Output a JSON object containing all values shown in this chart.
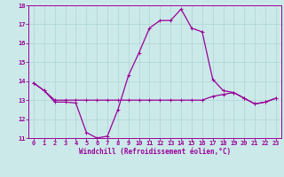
{
  "hours": [
    0,
    1,
    2,
    3,
    4,
    5,
    6,
    7,
    8,
    9,
    10,
    11,
    12,
    13,
    14,
    15,
    16,
    17,
    18,
    19,
    20,
    21,
    22,
    23
  ],
  "windchill": [
    13.9,
    13.5,
    12.9,
    12.9,
    12.85,
    11.3,
    11.0,
    11.1,
    12.5,
    14.3,
    15.5,
    16.8,
    17.2,
    17.2,
    17.8,
    16.8,
    16.6,
    14.1,
    13.5,
    13.4,
    13.1,
    12.8,
    12.9,
    13.1
  ],
  "temp": [
    13.9,
    13.5,
    13.0,
    13.0,
    13.0,
    13.0,
    13.0,
    13.0,
    13.0,
    13.0,
    13.0,
    13.0,
    13.0,
    13.0,
    13.0,
    13.0,
    13.0,
    13.2,
    13.3,
    13.4,
    13.1,
    12.8,
    12.9,
    13.1
  ],
  "line_color": "#990099",
  "bg_color": "#cce9e9",
  "grid_color": "#aad4d4",
  "xlabel": "Windchill (Refroidissement éolien,°C)",
  "ylim": [
    11,
    18
  ],
  "xlim": [
    -0.5,
    23.5
  ],
  "yticks": [
    11,
    12,
    13,
    14,
    15,
    16,
    17,
    18
  ],
  "xticks": [
    0,
    1,
    2,
    3,
    4,
    5,
    6,
    7,
    8,
    9,
    10,
    11,
    12,
    13,
    14,
    15,
    16,
    17,
    18,
    19,
    20,
    21,
    22,
    23
  ],
  "tick_fontsize": 5.0,
  "xlabel_fontsize": 5.5,
  "marker_size": 2.5,
  "line_width": 0.9
}
